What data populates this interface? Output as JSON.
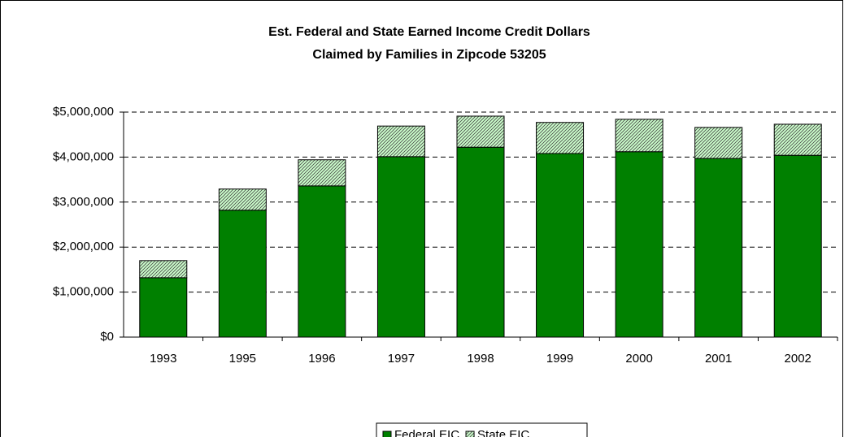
{
  "chart_data": {
    "type": "bar",
    "stacked": true,
    "title": [
      "Est. Federal and State Earned Income Credit Dollars",
      "Claimed by Families in Zipcode 53205"
    ],
    "categories": [
      "1993",
      "1995",
      "1996",
      "1997",
      "1998",
      "1999",
      "2000",
      "2001",
      "2002"
    ],
    "series": [
      {
        "name": "Federal EIC",
        "color": "#008000",
        "values": [
          1320000,
          2820000,
          3360000,
          4010000,
          4220000,
          4080000,
          4120000,
          3970000,
          4040000
        ]
      },
      {
        "name": "State EIC",
        "color": "#ccffcc",
        "hatch": true,
        "values": [
          380000,
          470000,
          580000,
          680000,
          690000,
          690000,
          720000,
          690000,
          690000
        ]
      }
    ],
    "ylim": [
      0,
      5000000
    ],
    "yticks": [
      {
        "value": 0,
        "label": "$0"
      },
      {
        "value": 1000000,
        "label": "$1,000,000"
      },
      {
        "value": 2000000,
        "label": "$2,000,000"
      },
      {
        "value": 3000000,
        "label": "$3,000,000"
      },
      {
        "value": 4000000,
        "label": "$4,000,000"
      },
      {
        "value": 5000000,
        "label": "$5,000,000"
      }
    ],
    "grid": true,
    "legend": "bottom"
  }
}
